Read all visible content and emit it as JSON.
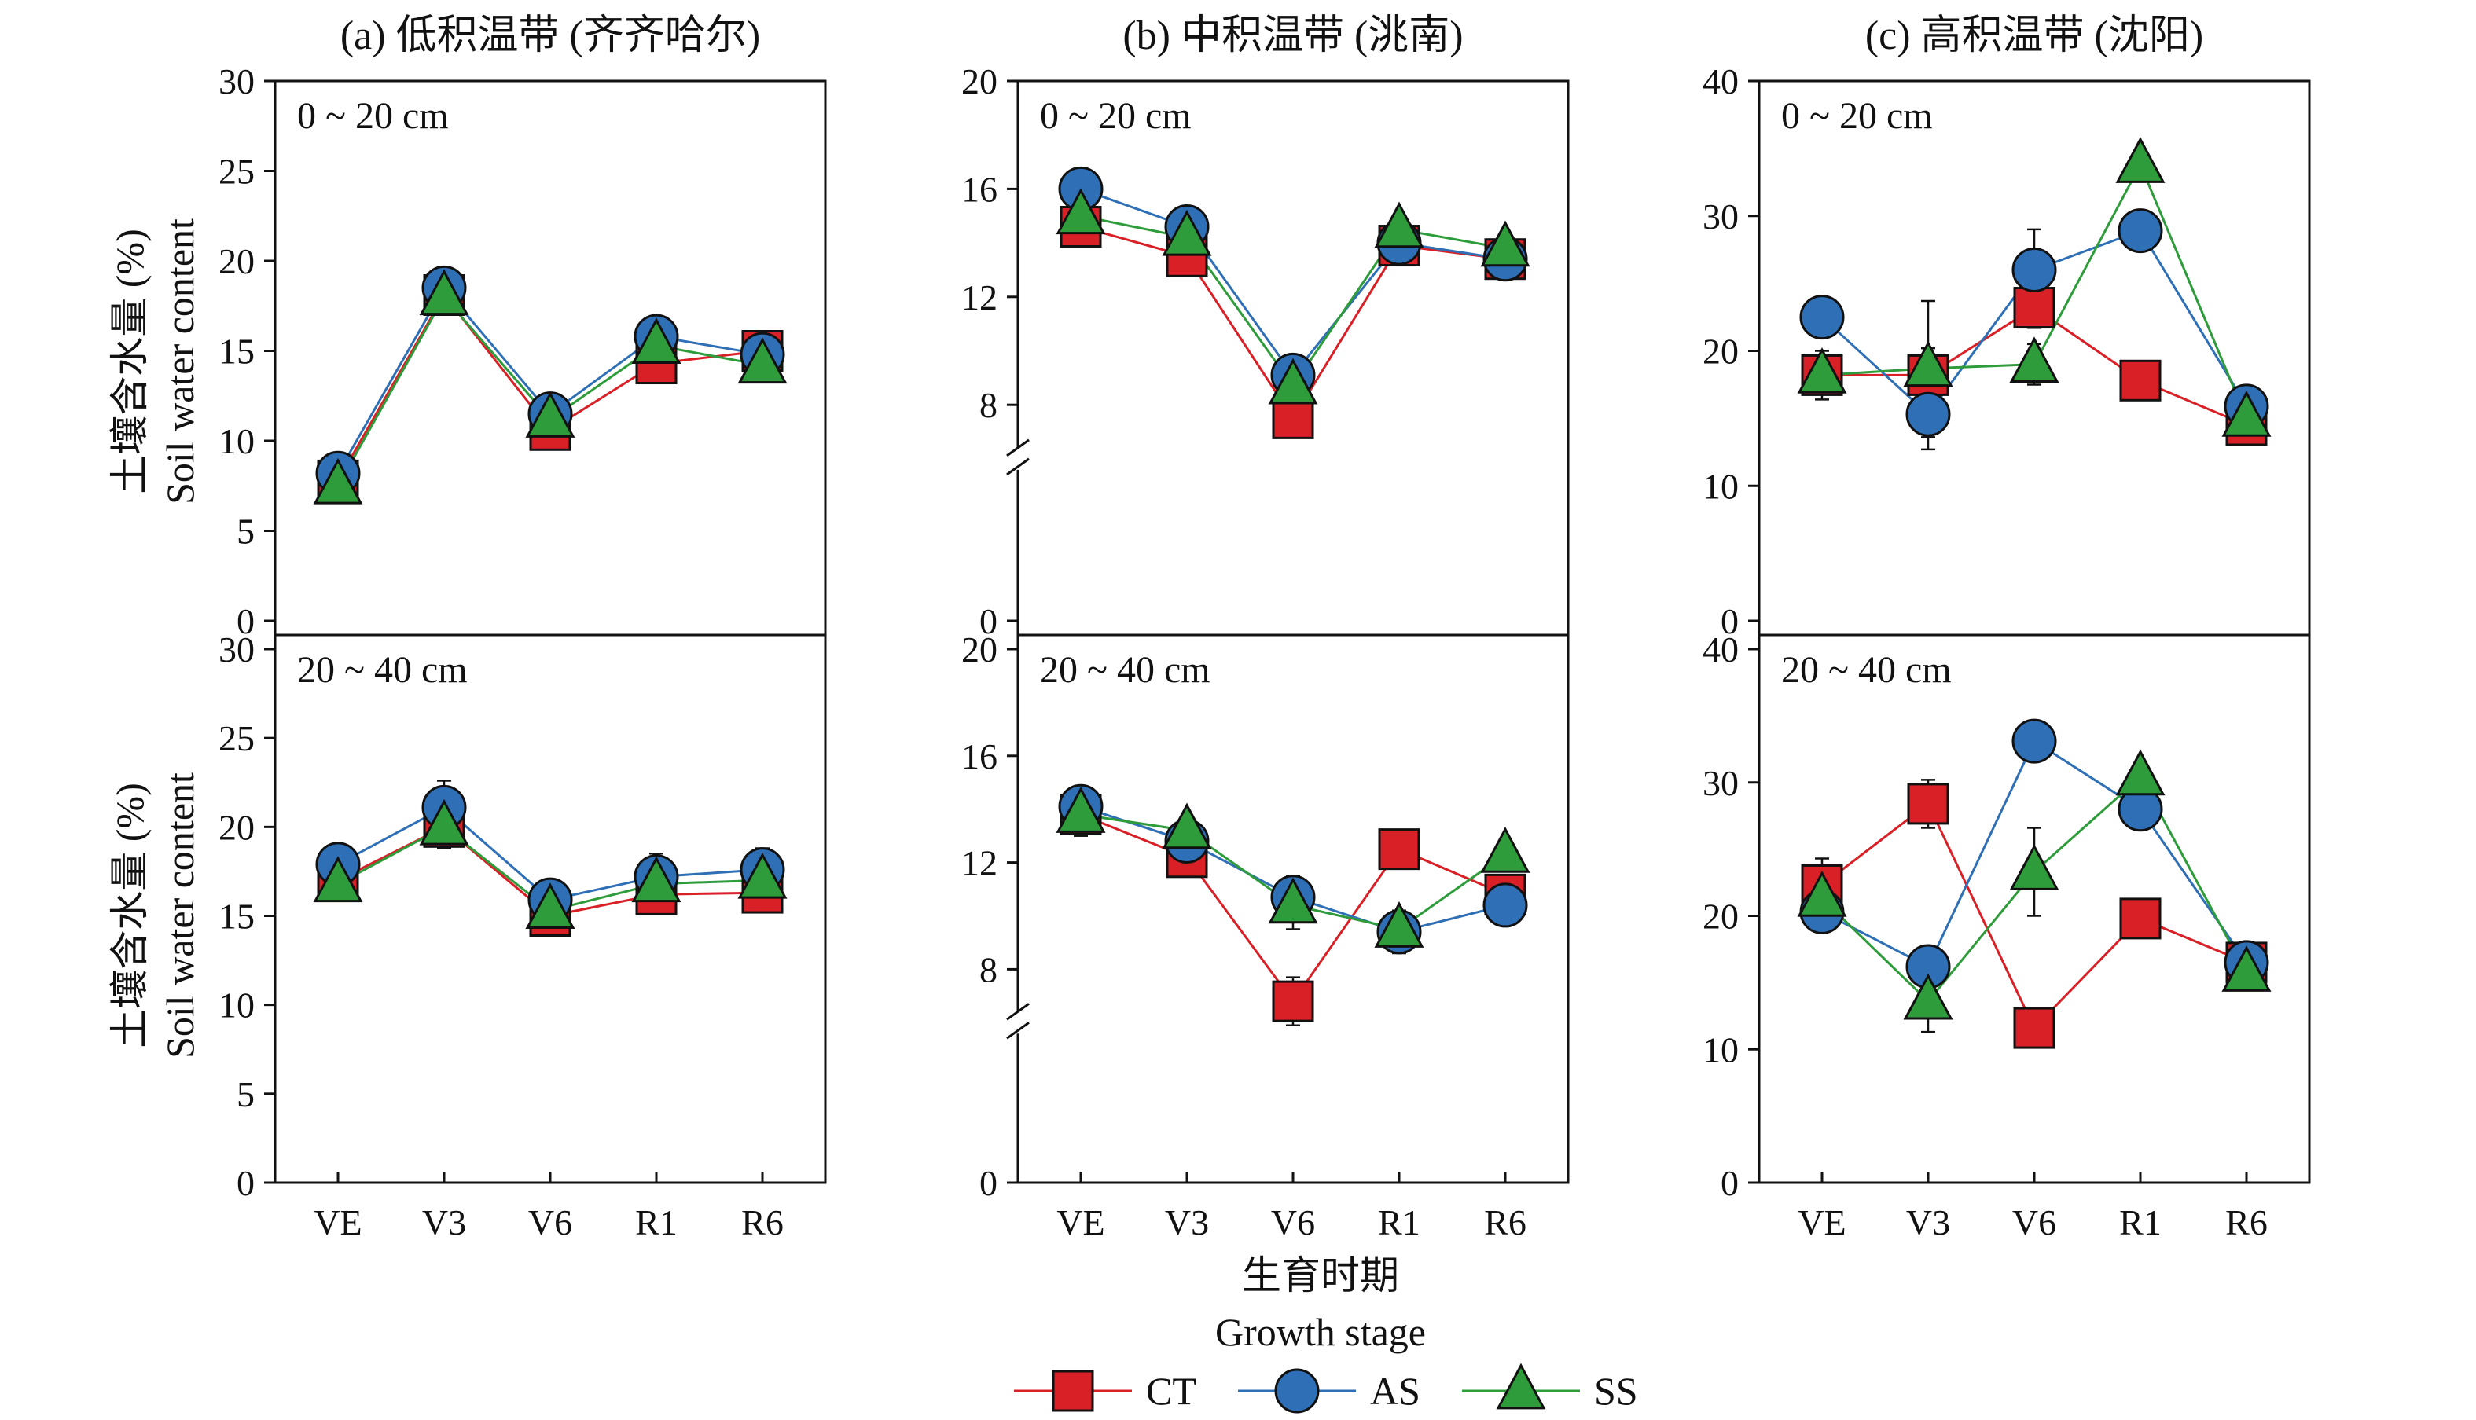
{
  "chart_data": {
    "type": "line",
    "categories": [
      "VE",
      "V3",
      "V6",
      "R1",
      "R6"
    ],
    "xlabel_zh": "生育时期",
    "xlabel_en": "Growth stage",
    "ylabel_zh": "土壤含水量 (%)",
    "ylabel_en": "Soil water content",
    "series_style": {
      "CT": {
        "color": "#d92027",
        "marker": "square"
      },
      "AS": {
        "color": "#2e6fb5",
        "marker": "circle"
      },
      "SS": {
        "color": "#2e9c3a",
        "marker": "triangle"
      }
    },
    "legend": [
      "CT",
      "AS",
      "SS"
    ],
    "legend_position": "bottom-center",
    "panels": [
      {
        "title": "(a) 低积温带 (齐齐哈尔)",
        "rows": [
          {
            "depth": "0 ~ 20 cm",
            "ylim": [
              0,
              30
            ],
            "yticks": [
              0,
              5,
              10,
              15,
              20,
              25,
              30
            ],
            "axis_break": false,
            "series": [
              {
                "name": "CT",
                "values": [
                  7.8,
                  18.1,
                  10.6,
                  14.3,
                  15.0
                ],
                "errors": [
                  0.6,
                  0.9,
                  0.6,
                  0.8,
                  0.7
                ]
              },
              {
                "name": "AS",
                "values": [
                  8.2,
                  18.5,
                  11.5,
                  15.8,
                  14.8
                ],
                "errors": [
                  0.5,
                  1.1,
                  0.6,
                  1.0,
                  0.8
                ]
              },
              {
                "name": "SS",
                "values": [
                  7.5,
                  18.0,
                  11.2,
                  15.3,
                  14.2
                ],
                "errors": [
                  0.6,
                  1.0,
                  0.6,
                  0.9,
                  0.7
                ]
              }
            ]
          },
          {
            "depth": "20 ~ 40 cm",
            "ylim": [
              0,
              30
            ],
            "yticks": [
              0,
              5,
              10,
              15,
              20,
              25,
              30
            ],
            "axis_break": false,
            "series": [
              {
                "name": "CT",
                "values": [
                  17.0,
                  20.0,
                  15.0,
                  16.2,
                  16.3
                ],
                "errors": [
                  1.0,
                  1.2,
                  1.0,
                  1.0,
                  1.0
                ]
              },
              {
                "name": "AS",
                "values": [
                  17.9,
                  21.1,
                  15.9,
                  17.2,
                  17.6
                ],
                "errors": [
                  0.8,
                  1.5,
                  1.0,
                  1.3,
                  1.2
                ]
              },
              {
                "name": "SS",
                "values": [
                  16.8,
                  20.0,
                  15.3,
                  16.8,
                  17.0
                ],
                "errors": [
                  0.9,
                  1.2,
                  0.9,
                  1.0,
                  1.0
                ]
              }
            ]
          }
        ]
      },
      {
        "title": "(b) 中积温带 (洮南)",
        "rows": [
          {
            "depth": "0 ~ 20 cm",
            "ylim": [
              0,
              20
            ],
            "yticks": [
              0,
              8,
              12,
              16,
              20
            ],
            "axis_break": true,
            "break_range": [
              4,
              8
            ],
            "series": [
              {
                "name": "CT",
                "values": [
                  14.6,
                  13.5,
                  7.5,
                  13.9,
                  13.4
                ],
                "errors": [
                  0.5,
                  0.5,
                  0.7,
                  0.4,
                  0.6
                ]
              },
              {
                "name": "AS",
                "values": [
                  16.0,
                  14.6,
                  9.1,
                  14.0,
                  13.4
                ],
                "errors": [
                  0.4,
                  0.7,
                  0.5,
                  0.5,
                  0.5
                ]
              },
              {
                "name": "SS",
                "values": [
                  15.0,
                  14.2,
                  8.7,
                  14.5,
                  13.8
                ],
                "errors": [
                  0.5,
                  0.6,
                  0.5,
                  0.5,
                  0.5
                ]
              }
            ]
          },
          {
            "depth": "20 ~ 40 cm",
            "ylim": [
              0,
              20
            ],
            "yticks": [
              0,
              8,
              12,
              16,
              20
            ],
            "axis_break": true,
            "break_range": [
              4,
              8
            ],
            "series": [
              {
                "name": "CT",
                "values": [
                  13.8,
                  12.2,
                  6.8,
                  12.5,
                  10.8
                ],
                "errors": [
                  0.8,
                  0.5,
                  0.9,
                  0.4,
                  0.5
                ]
              },
              {
                "name": "AS",
                "values": [
                  14.1,
                  12.8,
                  10.7,
                  9.4,
                  10.4
                ],
                "errors": [
                  0.7,
                  0.6,
                  0.8,
                  0.8,
                  0.5
                ]
              },
              {
                "name": "SS",
                "values": [
                  13.8,
                  13.2,
                  10.4,
                  9.5,
                  12.3
                ],
                "errors": [
                  0.8,
                  0.5,
                  0.9,
                  0.6,
                  0.5
                ]
              }
            ]
          }
        ]
      },
      {
        "title": "(c) 高积温带 (沈阳)",
        "rows": [
          {
            "depth": "0 ~ 20 cm",
            "ylim": [
              0,
              40
            ],
            "yticks": [
              0,
              10,
              20,
              30,
              40
            ],
            "axis_break": false,
            "series": [
              {
                "name": "CT",
                "values": [
                  18.2,
                  18.2,
                  23.2,
                  17.8,
                  14.5
                ],
                "errors": [
                  1.0,
                  5.5,
                  1.5,
                  1.0,
                  0.8
                ]
              },
              {
                "name": "AS",
                "values": [
                  22.5,
                  15.3,
                  26.0,
                  28.9,
                  15.9
                ],
                "errors": [
                  0.8,
                  1.7,
                  3.0,
                  1.0,
                  0.9
                ]
              },
              {
                "name": "SS",
                "values": [
                  18.2,
                  18.7,
                  19.0,
                  33.8,
                  15.0
                ],
                "errors": [
                  1.8,
                  1.5,
                  1.5,
                  1.0,
                  1.0
                ]
              }
            ]
          },
          {
            "depth": "20 ~ 40 cm",
            "ylim": [
              0,
              40
            ],
            "yticks": [
              0,
              10,
              20,
              30,
              40
            ],
            "axis_break": false,
            "series": [
              {
                "name": "CT",
                "values": [
                  22.3,
                  28.4,
                  11.6,
                  19.8,
                  16.5
                ],
                "errors": [
                  2.0,
                  1.8,
                  1.0,
                  1.0,
                  0.8
                ]
              },
              {
                "name": "AS",
                "values": [
                  20.3,
                  16.2,
                  33.1,
                  28.0,
                  16.5
                ],
                "errors": [
                  1.0,
                  1.0,
                  1.5,
                  1.5,
                  1.0
                ]
              },
              {
                "name": "SS",
                "values": [
                  21.3,
                  13.6,
                  23.3,
                  30.4,
                  15.7
                ],
                "errors": [
                  1.5,
                  2.3,
                  3.3,
                  1.0,
                  0.8
                ]
              }
            ]
          }
        ]
      }
    ]
  }
}
